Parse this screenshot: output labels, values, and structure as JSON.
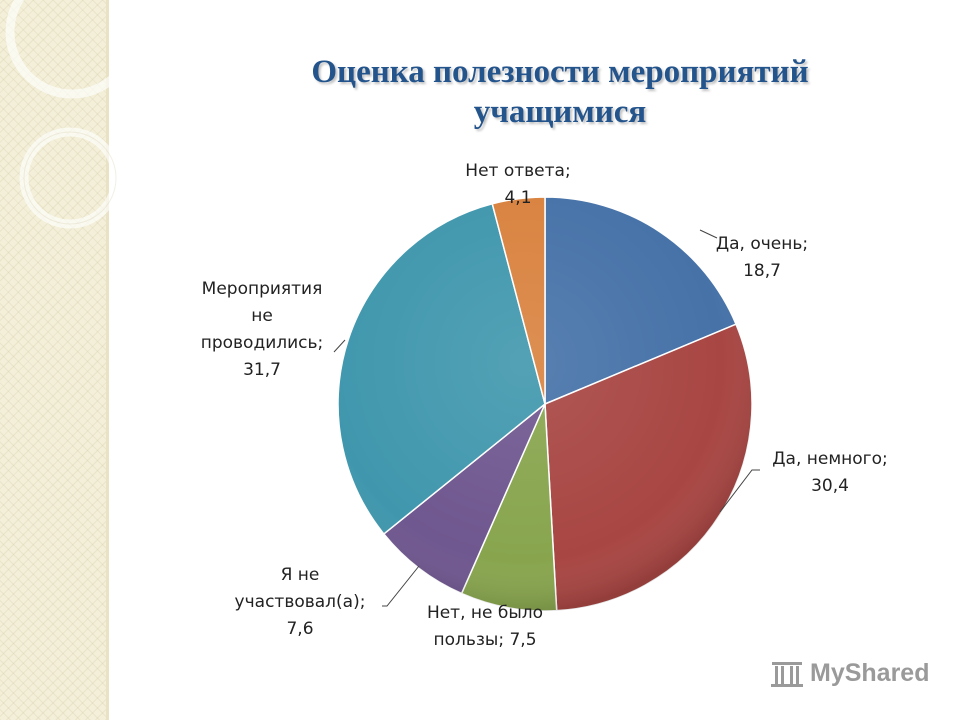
{
  "title_line1": "Оценка полезности мероприятий",
  "title_line2": "учащимися",
  "logo_text": "MyShared",
  "logo_icon": "podium-icon",
  "colors": {
    "title": "#24548c",
    "slices": [
      "#4672a8",
      "#a84643",
      "#88a54e",
      "#6f578f",
      "#4097ad",
      "#d9823f"
    ]
  },
  "chart_data": {
    "type": "pie",
    "title": "Оценка полезности мероприятий учащимися",
    "start_angle_deg": 0,
    "direction": "clockwise",
    "slices": [
      {
        "category": "Да, очень",
        "value": 18.7,
        "value_text": "18,7"
      },
      {
        "category": "Да, немного",
        "value": 30.4,
        "value_text": "30,4"
      },
      {
        "category": "Нет, не было пользы",
        "value": 7.5,
        "value_text": "7,5"
      },
      {
        "category": "Я не участвовал(а)",
        "value": 7.6,
        "value_text": "7,6"
      },
      {
        "category": "Мероприятия не проводились",
        "value": 31.7,
        "value_text": "31,7"
      },
      {
        "category": "Нет ответа",
        "value": 4.1,
        "value_text": "4,1"
      }
    ],
    "labels": [
      {
        "lines": [
          "Да, очень;",
          "18,7"
        ]
      },
      {
        "lines": [
          "Да, немного;",
          "30,4"
        ]
      },
      {
        "lines": [
          "Нет, не было",
          "пользы; 7,5"
        ]
      },
      {
        "lines": [
          "Я не",
          "участвовал(а);",
          "7,6"
        ]
      },
      {
        "lines": [
          "Мероприятия",
          "не",
          "проводились;",
          "31,7"
        ]
      },
      {
        "lines": [
          "Нет ответа;",
          "4,1"
        ]
      }
    ],
    "legend": "none"
  }
}
